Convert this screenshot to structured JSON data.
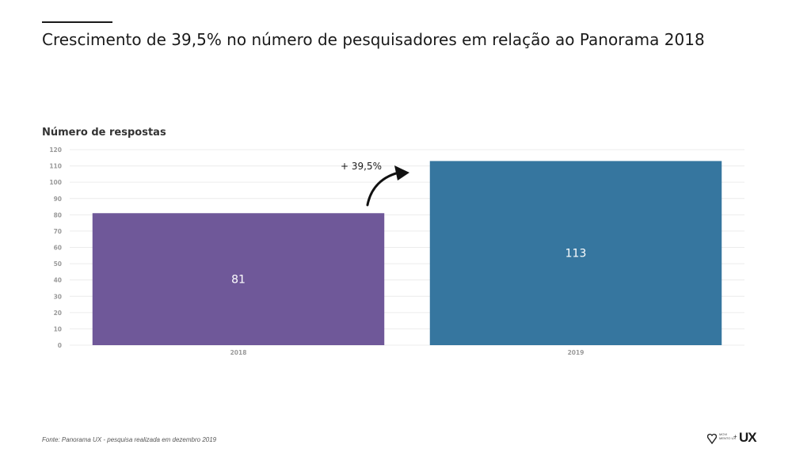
{
  "page": {
    "title": "Crescimento de 39,5% no número de pesquisadores em relação ao Panorama 2018",
    "footnote": "Fonte: Panorama UX - pesquisa realizada em dezembro 2019"
  },
  "logo": {
    "small_text": "MOVI MENTO UX",
    "ux_text": "UX",
    "plus": "+"
  },
  "colors": {
    "bar_2018": "#6f5899",
    "bar_2019": "#36769f",
    "gridline": "#ececec",
    "tick_label": "#9a9a9a"
  },
  "chart_data": {
    "type": "bar",
    "title": "Número de respostas",
    "categories": [
      "2018",
      "2019"
    ],
    "values": [
      81,
      113
    ],
    "data_labels": [
      "81",
      "113"
    ],
    "ylim": [
      0,
      120
    ],
    "yticks": [
      0,
      10,
      20,
      30,
      40,
      50,
      60,
      70,
      80,
      90,
      100,
      110,
      120
    ],
    "grid": true,
    "annotation": "+ 39,5%"
  }
}
